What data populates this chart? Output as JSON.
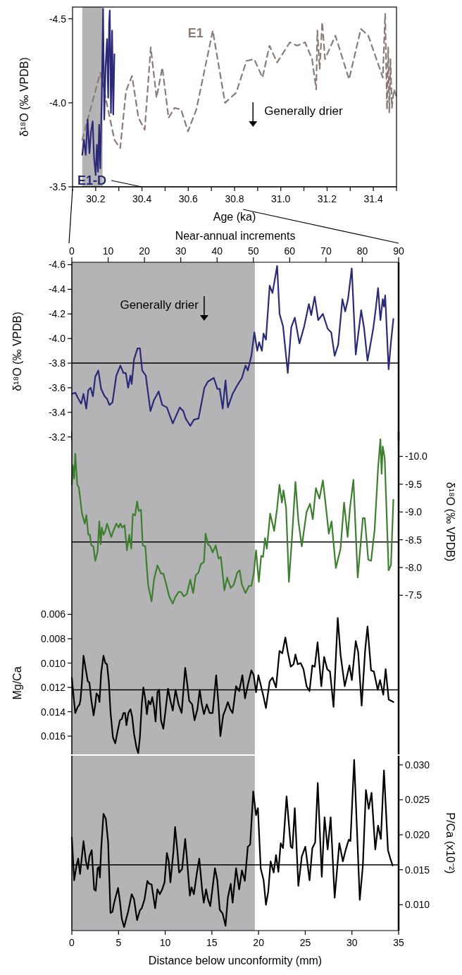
{
  "chart_data": [
    {
      "type": "line",
      "xlabel": "Age (ka)",
      "ylabel": "δ¹⁸O (‰ VPDB)",
      "xlim": [
        30.1,
        31.5
      ],
      "xticks": [
        {
          "value": 30.1,
          "label": null
        },
        30.2,
        {
          "value": 30.3,
          "label": null
        },
        30.4,
        {
          "value": 30.5,
          "label": null
        },
        30.6,
        {
          "value": 30.7,
          "label": null
        },
        30.8,
        {
          "value": 30.9,
          "label": null
        },
        {
          "value": 31,
          "label": "31.0"
        },
        {
          "value": 31.1,
          "label": null
        },
        31.2,
        {
          "value": 31.3,
          "label": null
        },
        31.4,
        {
          "value": 31.5,
          "label": null
        }
      ],
      "ylim": [
        -3.5,
        -4.57
      ],
      "yticks": [
        -4.5,
        {
          "value": -4,
          "label": "-4.0"
        },
        -3.5
      ],
      "bands": [
        {
          "axis": "x",
          "from": 30.142,
          "to": 30.23,
          "color": "#b4b3b5"
        }
      ],
      "annotations": [
        "Generally drier"
      ],
      "series": [
        {
          "name": "E1",
          "color": "#8a7b76",
          "line_style": "dashed",
          "x": [
            30.142,
            30.22,
            30.281,
            30.306,
            30.331,
            30.357,
            30.385,
            30.412,
            30.438,
            30.463,
            30.488,
            30.515,
            30.541,
            30.569,
            30.599,
            30.635,
            30.706,
            30.759,
            30.807,
            30.852,
            30.885,
            30.921,
            30.951,
            30.984,
            31.039,
            31.07,
            31.105,
            31.135,
            31.153,
            31.158,
            31.168,
            31.179,
            31.191,
            31.236,
            31.295,
            31.346,
            31.378,
            31.441,
            31.451,
            31.459,
            31.464,
            31.469,
            31.474,
            31.48,
            31.489,
            31.499
          ],
          "values": [
            -3.78,
            -4.18,
            -3.78,
            -3.73,
            -4.07,
            -4.16,
            -3.91,
            -3.84,
            -4.33,
            -4.03,
            -4.21,
            -3.91,
            -3.97,
            -3.96,
            -3.83,
            -3.96,
            -4.43,
            -4.0,
            -4.06,
            -4.25,
            -4.26,
            -4.15,
            -4.34,
            -4.24,
            -4.36,
            -4.34,
            -4.36,
            -4.26,
            -4.08,
            -4.43,
            -4.2,
            -4.48,
            -4.26,
            -4.4,
            -4.14,
            -4.44,
            -4.4,
            -4.15,
            -4.53,
            -3.96,
            -4.33,
            -3.94,
            -4.26,
            -3.97,
            -4.08,
            -4.04
          ]
        },
        {
          "name": "E1-D",
          "color": "#2b2a78",
          "x": [
            30.142,
            30.149,
            30.157,
            30.165,
            30.173,
            30.18,
            30.187,
            30.193,
            30.2,
            30.205,
            30.21,
            30.215,
            30.22,
            30.227,
            30.232,
            30.237,
            30.243,
            30.249,
            30.254,
            30.258,
            30.261,
            30.266,
            30.271,
            30.276,
            30.281
          ],
          "values": [
            -3.69,
            -3.78,
            -3.69,
            -3.9,
            -3.7,
            -3.83,
            -3.89,
            -3.67,
            -3.57,
            -3.75,
            -3.59,
            -3.87,
            -3.61,
            -4.1,
            -4.56,
            -3.9,
            -4.22,
            -4.38,
            -4.03,
            -4.47,
            -4.55,
            -3.94,
            -4.43,
            -3.93,
            -4.29
          ]
        }
      ]
    },
    {
      "type": "line",
      "ylabel": "δ¹⁸O (‰ VPDB)",
      "x2label": "Near-annual increments",
      "xlim": [
        0,
        35
      ],
      "x2lim": [
        0,
        90
      ],
      "x2ticks": [
        0,
        10,
        20,
        30,
        40,
        50,
        60,
        70,
        80,
        90
      ],
      "ylim": [
        -3.17,
        -4.62
      ],
      "yticks": [
        -4.6,
        -4.4,
        -4.2,
        {
          "value": -4,
          "label": "-4.0"
        },
        -3.8,
        -3.6,
        -3.4,
        -3.2
      ],
      "tick_labels": "y",
      "bands": [
        {
          "axis": "x",
          "from": 0,
          "to": 19.6,
          "color": "#b4b3b5"
        }
      ],
      "ref_lines": [
        {
          "axis": "y",
          "value": -3.8,
          "color": "#000000"
        }
      ],
      "annotations": [
        "Generally drier"
      ],
      "series": [
        {
          "color": "#2b2a78",
          "x": [
            0,
            0.37,
            0.63,
            1.0,
            1.25,
            1.55,
            1.76,
            2.01,
            2.26,
            2.51,
            2.84,
            3.14,
            3.52,
            3.77,
            4.02,
            4.35,
            4.77,
            5.2,
            5.53,
            5.78,
            6.03,
            6.28,
            6.41,
            6.66,
            7.04,
            7.29,
            7.54,
            7.92,
            8.42,
            8.8,
            9.3,
            9.68,
            10.18,
            10.81,
            11.56,
            11.94,
            12.19,
            12.69,
            13.07,
            13.57,
            14.2,
            14.58,
            15.21,
            15.59,
            15.84,
            16.16,
            16.46,
            16.71,
            17.22,
            17.72,
            18.22,
            18.6,
            18.85,
            19.23,
            19.55,
            19.86,
            20.06,
            20.36,
            20.53,
            20.79,
            21.19,
            21.49,
            21.99,
            22.25,
            22.62,
            23.13,
            23.5,
            23.88,
            24.38,
            24.89,
            25.39,
            25.64,
            26.01,
            26.39,
            26.89,
            27.4,
            27.78,
            28.15,
            28.53,
            28.98,
            29.28,
            29.58,
            29.98,
            30.41,
            30.99,
            31.29,
            31.67,
            32.05,
            32.3,
            32.55,
            32.8,
            33.05,
            33.3,
            33.43,
            33.56,
            33.93,
            34.18,
            34.44
          ],
          "values": [
            -3.55,
            -3.56,
            -3.52,
            -3.47,
            -3.55,
            -3.43,
            -3.58,
            -3.6,
            -3.53,
            -3.69,
            -3.74,
            -3.59,
            -3.53,
            -3.51,
            -3.46,
            -3.48,
            -3.7,
            -3.78,
            -3.72,
            -3.72,
            -3.6,
            -3.7,
            -3.63,
            -3.83,
            -3.92,
            -3.92,
            -3.74,
            -3.7,
            -3.41,
            -3.5,
            -3.57,
            -3.46,
            -3.44,
            -3.31,
            -3.44,
            -3.41,
            -3.35,
            -3.29,
            -3.34,
            -3.35,
            -3.6,
            -3.65,
            -3.68,
            -3.59,
            -3.59,
            -3.43,
            -3.66,
            -3.44,
            -3.55,
            -3.62,
            -3.68,
            -3.78,
            -3.74,
            -3.86,
            -4.05,
            -3.9,
            -3.97,
            -3.9,
            -4.04,
            -3.99,
            -4.43,
            -4.37,
            -4.59,
            -4.2,
            -4.1,
            -3.72,
            -4.09,
            -4.17,
            -3.96,
            -4.1,
            -4.28,
            -4.19,
            -4.34,
            -4.15,
            -4.2,
            -4.08,
            -4.05,
            -3.86,
            -3.95,
            -4.32,
            -4.22,
            -4.32,
            -4.57,
            -3.87,
            -4.23,
            -4.09,
            -3.82,
            -3.98,
            -4.09,
            -4.24,
            -4.41,
            -4.15,
            -4.32,
            -4.26,
            -4.35,
            -3.75,
            -3.97,
            -4.16
          ]
        }
      ]
    },
    {
      "type": "line",
      "y2label": "δ¹⁸O (‰ VPDB)",
      "xlim": [
        0,
        35
      ],
      "y2lim": [
        -7.2,
        -10.45
      ],
      "y2ticks": [
        {
          "value": -10,
          "label": "-10.0"
        },
        -9.5,
        {
          "value": -9,
          "label": "-9.0"
        },
        -8.5,
        {
          "value": -8,
          "label": "-8.0"
        },
        -7.5
      ],
      "tick_labels": "y",
      "bands": [
        {
          "axis": "x",
          "from": 0,
          "to": 19.6,
          "color": "#b4b3b5"
        }
      ],
      "ref_lines": [
        {
          "axis": "y2",
          "value": -8.46,
          "color": "#000000"
        }
      ],
      "series": [
        {
          "color": "#3d7f2e",
          "axis": "y2",
          "x": [
            0,
            0.12,
            0.25,
            0.37,
            0.58,
            0.75,
            1.08,
            1.38,
            1.56,
            1.76,
            1.93,
            2.08,
            2.31,
            2.51,
            2.76,
            2.94,
            3.09,
            3.21,
            3.39,
            3.59,
            3.77,
            3.97,
            4.22,
            4.45,
            4.77,
            5.02,
            5.2,
            5.4,
            5.65,
            5.9,
            6.16,
            6.36,
            6.53,
            6.78,
            6.99,
            7.16,
            7.41,
            7.59,
            7.87,
            8.17,
            8.54,
            8.8,
            9.17,
            9.55,
            9.8,
            10.05,
            10.43,
            10.81,
            11.06,
            11.43,
            11.69,
            11.99,
            12.31,
            12.69,
            12.99,
            13.27,
            13.57,
            13.82,
            14.15,
            14.33,
            14.58,
            14.83,
            15.08,
            15.41,
            15.71,
            15.96,
            16.34,
            16.64,
            17.02,
            17.34,
            17.72,
            17.97,
            18.22,
            18.6,
            18.98,
            19.23,
            19.48,
            19.73,
            20.03,
            20.28,
            20.48,
            20.69,
            20.89,
            21.24,
            21.67,
            21.99,
            22.24,
            22.5,
            22.67,
            22.95,
            23.25,
            23.55,
            23.95,
            24.26,
            24.63,
            25.14,
            25.51,
            25.81,
            26.14,
            26.52,
            26.89,
            27.15,
            27.52,
            27.82,
            28.28,
            28.78,
            29.16,
            29.54,
            29.79,
            30.16,
            30.62,
            31.17,
            31.37,
            31.75,
            32.05,
            32.43,
            32.8,
            33.05,
            33.18,
            33.3,
            33.51,
            33.93,
            34.18,
            34.44
          ],
          "values": [
            -9.49,
            -9.84,
            -9.6,
            -10.05,
            -9.49,
            -9.45,
            -8.98,
            -8.79,
            -8.94,
            -8.59,
            -8.59,
            -8.4,
            -8.38,
            -8.12,
            -8.29,
            -8.83,
            -8.42,
            -8.72,
            -8.59,
            -8.66,
            -8.79,
            -8.68,
            -8.55,
            -8.66,
            -8.79,
            -8.72,
            -8.79,
            -8.72,
            -8.76,
            -8.31,
            -8.59,
            -8.34,
            -8.96,
            -8.94,
            -9.19,
            -9.02,
            -9.04,
            -8.4,
            -8.38,
            -7.69,
            -7.39,
            -7.78,
            -8.04,
            -7.89,
            -7.89,
            -7.74,
            -7.48,
            -7.35,
            -7.46,
            -7.56,
            -7.56,
            -7.48,
            -7.52,
            -7.78,
            -7.54,
            -7.86,
            -7.91,
            -8.06,
            -8.1,
            -8.61,
            -8.42,
            -8.38,
            -8.27,
            -8.4,
            -8.16,
            -8.19,
            -7.59,
            -7.82,
            -7.63,
            -7.69,
            -7.91,
            -7.95,
            -7.69,
            -7.54,
            -7.67,
            -7.67,
            -7.89,
            -8.31,
            -7.74,
            -8.21,
            -8.19,
            -8.53,
            -8.34,
            -8.97,
            -8.66,
            -9.07,
            -9.49,
            -9.17,
            -9.39,
            -9.07,
            -7.74,
            -8.46,
            -9.54,
            -8.85,
            -8.38,
            -9.0,
            -9.15,
            -8.87,
            -9.43,
            -9.24,
            -9.57,
            -9.19,
            -8.61,
            -8.83,
            -7.99,
            -8.34,
            -9.17,
            -8.55,
            -9.07,
            -9.58,
            -7.82,
            -8.89,
            -8.89,
            -8.14,
            -8.12,
            -8.68,
            -9.79,
            -10.31,
            -9.69,
            -10.18,
            -9.97,
            -7.95,
            -8.04,
            -9.22
          ]
        }
      ]
    },
    {
      "type": "line",
      "ylabel": "Mg/Ca",
      "xlim": [
        0,
        35
      ],
      "ylim": [
        0.0175,
        0.0058
      ],
      "yticks": [
        {
          "value": 0.006,
          "label": "0.006"
        },
        {
          "value": 0.008,
          "label": "0.008"
        },
        {
          "value": 0.01,
          "label": "0.010"
        },
        {
          "value": 0.012,
          "label": "0.012"
        },
        {
          "value": 0.014,
          "label": "0.014"
        },
        {
          "value": 0.016,
          "label": "0.016"
        }
      ],
      "tick_labels": "y",
      "bands": [
        {
          "axis": "x",
          "from": 0,
          "to": 19.6,
          "color": "#b4b3b5"
        }
      ],
      "ref_lines": [
        {
          "axis": "y",
          "value": 0.0122,
          "color": "#000000"
        }
      ],
      "series": [
        {
          "color": "#000000",
          "x": [
            0,
            0.17,
            0.37,
            0.63,
            0.83,
            0.93,
            1.08,
            1.25,
            1.51,
            1.71,
            1.88,
            2.08,
            2.33,
            2.51,
            2.64,
            2.84,
            2.96,
            3.14,
            3.39,
            3.59,
            3.77,
            3.97,
            4.14,
            4.4,
            4.65,
            4.85,
            5.15,
            5.35,
            5.53,
            5.7,
            5.85,
            6.06,
            6.28,
            6.46,
            6.66,
            6.91,
            7.11,
            7.29,
            7.49,
            7.66,
            7.86,
            8.04,
            8.22,
            8.42,
            8.62,
            8.8,
            8.97,
            9.17,
            9.35,
            9.55,
            9.8,
            10.05,
            10.3,
            10.56,
            10.81,
            11.11,
            11.43,
            11.76,
            12.14,
            12.31,
            12.57,
            12.89,
            13.14,
            13.45,
            13.7,
            13.9,
            14.15,
            14.45,
            14.76,
            15.08,
            15.46,
            15.71,
            15.91,
            16.21,
            16.46,
            16.71,
            16.97,
            17.22,
            17.59,
            17.92,
            18.27,
            18.55,
            18.85,
            19.23,
            19.48,
            19.73,
            19.98,
            20.23,
            20.54,
            20.79,
            21.19,
            21.49,
            21.87,
            22.24,
            22.54,
            22.87,
            23.13,
            23.45,
            23.75,
            23.95,
            24.2,
            24.51,
            24.81,
            25.14,
            25.46,
            25.76,
            26.02,
            26.32,
            26.72,
            27.02,
            27.35,
            27.65,
            28.03,
            28.48,
            28.78,
            29.23,
            29.73,
            29.99,
            30.41,
            30.67,
            31.04,
            31.42,
            31.67,
            32.05,
            32.35,
            32.76,
            33.01,
            33.36,
            33.61,
            33.94,
            34.19,
            34.44
          ],
          "values": [
            0.0112,
            0.0126,
            0.0141,
            0.0136,
            0.0134,
            0.013,
            0.0116,
            0.0094,
            0.0106,
            0.0115,
            0.0116,
            0.013,
            0.0143,
            0.0134,
            0.0125,
            0.0127,
            0.0132,
            0.0108,
            0.0094,
            0.01,
            0.0101,
            0.0116,
            0.014,
            0.0161,
            0.0166,
            0.0158,
            0.0147,
            0.0146,
            0.0141,
            0.0141,
            0.0151,
            0.0141,
            0.0138,
            0.0144,
            0.0158,
            0.0169,
            0.0174,
            0.0161,
            0.0134,
            0.012,
            0.0129,
            0.0142,
            0.0131,
            0.0134,
            0.0128,
            0.0136,
            0.0148,
            0.0124,
            0.0122,
            0.0147,
            0.0154,
            0.0138,
            0.0121,
            0.0131,
            0.0139,
            0.0122,
            0.0134,
            0.0141,
            0.0104,
            0.0114,
            0.0131,
            0.0134,
            0.0147,
            0.0138,
            0.0122,
            0.0133,
            0.0142,
            0.0134,
            0.0141,
            0.0141,
            0.011,
            0.0134,
            0.016,
            0.0143,
            0.0138,
            0.0132,
            0.0138,
            0.0141,
            0.0119,
            0.0123,
            0.011,
            0.0129,
            0.0118,
            0.0106,
            0.011,
            0.0124,
            0.011,
            0.0118,
            0.0128,
            0.0137,
            0.0115,
            0.0112,
            0.012,
            0.009,
            0.0092,
            0.0079,
            0.0091,
            0.0103,
            0.0101,
            0.0093,
            0.0101,
            0.01,
            0.0105,
            0.0119,
            0.0123,
            0.0102,
            0.0103,
            0.0083,
            0.0119,
            0.0095,
            0.0105,
            0.0107,
            0.0136,
            0.0063,
            0.0093,
            0.0119,
            0.0102,
            0.0114,
            0.0082,
            0.0091,
            0.0135,
            0.0089,
            0.007,
            0.0106,
            0.0107,
            0.0122,
            0.0114,
            0.0126,
            0.0105,
            0.013,
            0.0131,
            0.0132
          ]
        }
      ]
    },
    {
      "type": "line",
      "xlabel": "Distance below unconformity (mm)",
      "y2label": "P/Ca (x10⁻²)",
      "xlim": [
        0,
        35
      ],
      "xticks": [
        0,
        5,
        10,
        15,
        20,
        25,
        30,
        35
      ],
      "y2lim": [
        0.0063,
        0.0313
      ],
      "y2ticks": [
        {
          "value": 0.03,
          "label": "0.030"
        },
        {
          "value": 0.025,
          "label": "0.025"
        },
        {
          "value": 0.02,
          "label": "0.020"
        },
        {
          "value": 0.015,
          "label": "0.015"
        },
        {
          "value": 0.01,
          "label": "0.010"
        }
      ],
      "bands": [
        {
          "axis": "x",
          "from": 0,
          "to": 19.6,
          "color": "#b4b3b5"
        }
      ],
      "ref_lines": [
        {
          "axis": "y2",
          "value": 0.0157,
          "color": "#000000"
        }
      ],
      "series": [
        {
          "color": "#000000",
          "axis": "y2",
          "x": [
            0,
            0.25,
            0.5,
            0.68,
            0.88,
            1.08,
            1.25,
            1.51,
            1.71,
            1.88,
            2.13,
            2.39,
            2.56,
            2.76,
            2.89,
            3.01,
            3.14,
            3.39,
            3.64,
            3.89,
            4.14,
            4.35,
            4.52,
            4.77,
            4.95,
            5.15,
            5.35,
            5.6,
            5.85,
            6.03,
            6.41,
            6.66,
            6.99,
            7.29,
            7.49,
            7.79,
            8.09,
            8.29,
            8.54,
            8.92,
            9.17,
            9.42,
            9.68,
            9.93,
            10.18,
            10.38,
            10.56,
            10.88,
            11.06,
            11.31,
            11.49,
            11.81,
            12.14,
            12.31,
            12.64,
            12.82,
            13.07,
            13.4,
            13.65,
            13.95,
            14.13,
            14.38,
            14.58,
            14.83,
            15.08,
            15.33,
            15.58,
            15.84,
            16.16,
            16.46,
            16.71,
            17.02,
            17.22,
            17.59,
            17.92,
            18.22,
            18.53,
            18.85,
            19.1,
            19.43,
            19.73,
            19.93,
            20.23,
            20.54,
            20.79,
            21.04,
            21.29,
            21.62,
            21.87,
            22.12,
            22.37,
            22.62,
            23.0,
            23.45,
            23.63,
            23.88,
            24.26,
            24.63,
            25.01,
            25.46,
            25.76,
            26.06,
            26.34,
            26.77,
            27.07,
            27.4,
            27.72,
            28.15,
            28.65,
            29.03,
            29.28,
            29.66,
            29.84,
            30.24,
            30.84,
            31.17,
            31.5,
            31.8,
            32.1,
            32.5,
            32.8,
            33.1,
            33.43,
            33.86,
            34.11,
            34.36
          ],
          "values": [
            0.0196,
            0.0135,
            0.0156,
            0.0166,
            0.0144,
            0.0169,
            0.0191,
            0.0162,
            0.0151,
            0.0169,
            0.0178,
            0.0122,
            0.012,
            0.0152,
            0.0154,
            0.0139,
            0.0179,
            0.023,
            0.0223,
            0.0189,
            0.0088,
            0.009,
            0.0102,
            0.0115,
            0.0124,
            0.0105,
            0.008,
            0.0068,
            0.0081,
            0.009,
            0.0115,
            0.0108,
            0.0078,
            0.0092,
            0.0095,
            0.0108,
            0.0134,
            0.013,
            0.0129,
            0.0095,
            0.0122,
            0.0115,
            0.0122,
            0.0132,
            0.0174,
            0.0162,
            0.0132,
            0.0176,
            0.0211,
            0.0176,
            0.0146,
            0.0151,
            0.0194,
            0.0169,
            0.0113,
            0.0125,
            0.0115,
            0.0146,
            0.0166,
            0.0122,
            0.0103,
            0.0122,
            0.0108,
            0.0098,
            0.0125,
            0.0152,
            0.0135,
            0.0093,
            0.0087,
            0.007,
            0.011,
            0.013,
            0.0103,
            0.0152,
            0.0122,
            0.0149,
            0.0134,
            0.0183,
            0.0186,
            0.0262,
            0.0228,
            0.0238,
            0.0152,
            0.0135,
            0.01,
            0.0119,
            0.0162,
            0.0146,
            0.0171,
            0.0147,
            0.0188,
            0.0181,
            0.0255,
            0.0183,
            0.0181,
            0.0238,
            0.0127,
            0.0169,
            0.0183,
            0.0135,
            0.0181,
            0.0189,
            0.0274,
            0.014,
            0.0225,
            0.0179,
            0.0225,
            0.011,
            0.0188,
            0.0162,
            0.0176,
            0.0193,
            0.0191,
            0.0307,
            0.0107,
            0.0156,
            0.0264,
            0.0237,
            0.026,
            0.0179,
            0.0213,
            0.0194,
            0.0292,
            0.0178,
            0.0166,
            0.0156
          ]
        }
      ]
    }
  ]
}
